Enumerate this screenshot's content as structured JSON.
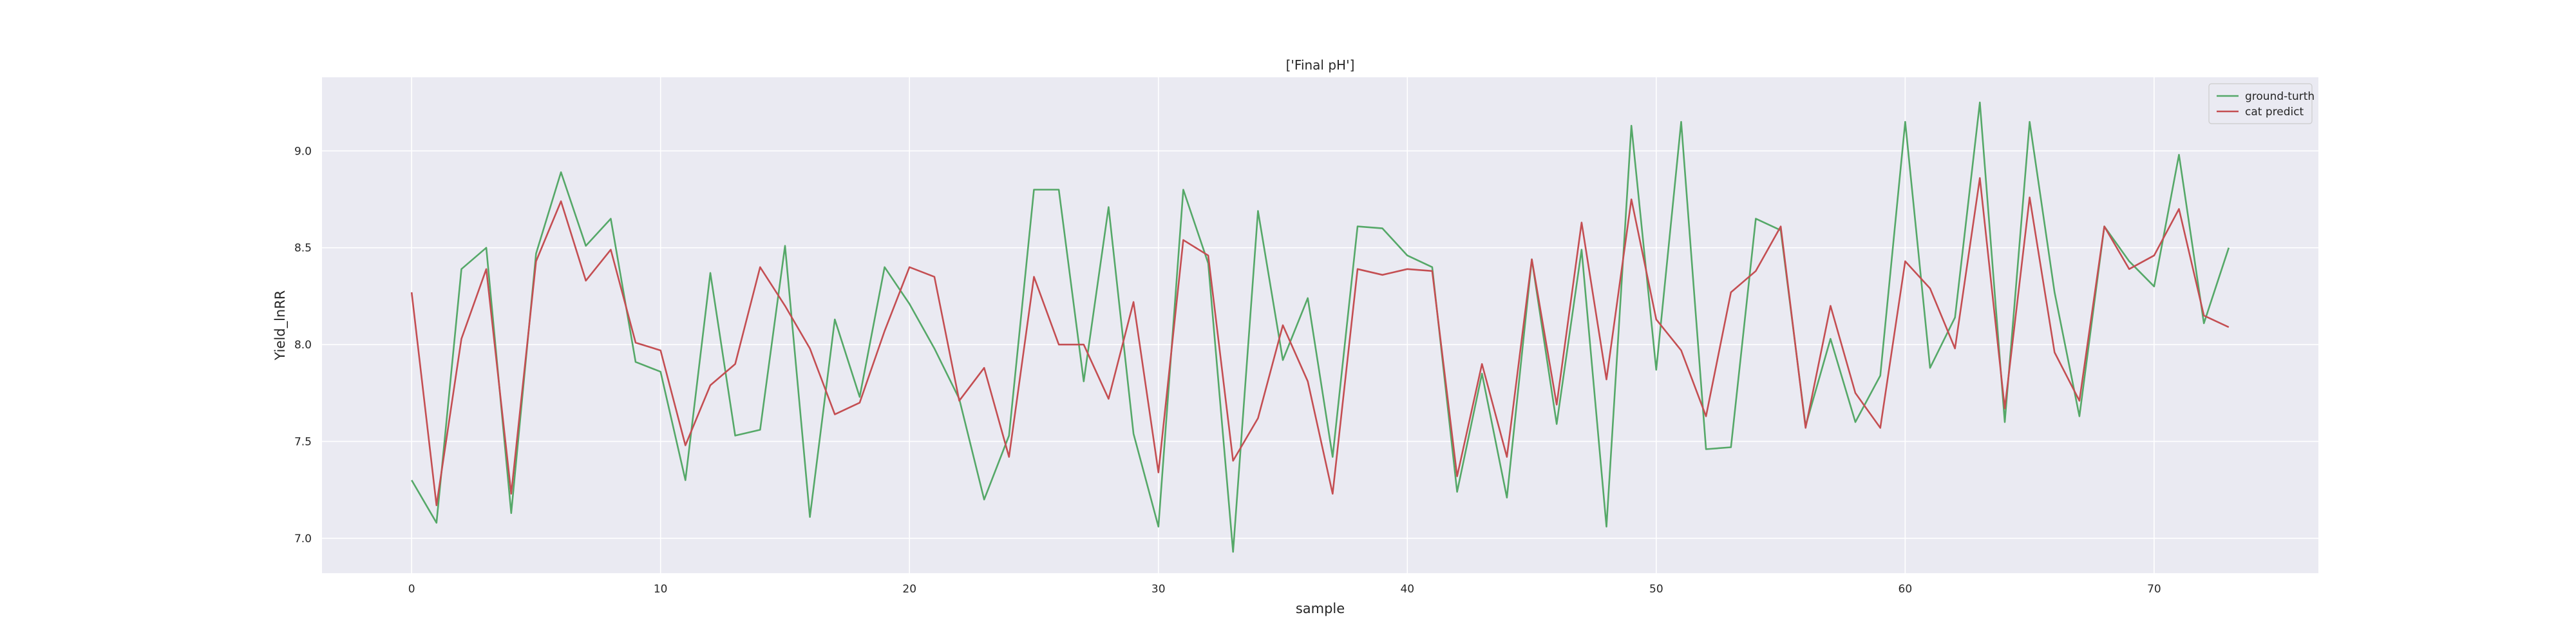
{
  "chart_data": {
    "type": "line",
    "title": "['Final pH']",
    "xlabel": "sample",
    "ylabel": "Yield_lnRR",
    "xlim": [
      -3.6,
      76.6
    ],
    "ylim": [
      6.82,
      9.38
    ],
    "xticks": [
      0,
      10,
      20,
      30,
      40,
      50,
      60,
      70
    ],
    "xtick_labels": [
      "0",
      "10",
      "20",
      "30",
      "40",
      "50",
      "60",
      "70"
    ],
    "yticks": [
      7.0,
      7.5,
      8.0,
      8.5,
      9.0
    ],
    "ytick_labels": [
      "7.0",
      "7.5",
      "8.0",
      "8.5",
      "9.0"
    ],
    "grid": true,
    "legend_position": "top-right",
    "background": "#eaeaf2",
    "series": [
      {
        "name": "ground-turth",
        "color": "#55a868",
        "x": [
          0,
          1,
          2,
          3,
          4,
          5,
          6,
          7,
          8,
          9,
          10,
          11,
          12,
          13,
          14,
          15,
          16,
          17,
          18,
          19,
          20,
          21,
          22,
          23,
          24,
          25,
          26,
          27,
          28,
          29,
          30,
          31,
          32,
          33,
          34,
          35,
          36,
          37,
          38,
          39,
          40,
          41,
          42,
          43,
          44,
          45,
          46,
          47,
          48,
          49,
          50,
          51,
          52,
          53,
          54,
          55,
          56,
          57,
          58,
          59,
          60,
          61,
          62,
          63,
          64,
          65,
          66,
          67,
          68,
          69,
          70,
          71,
          72,
          73
        ],
        "values": [
          7.3,
          7.08,
          8.39,
          8.5,
          7.13,
          8.47,
          8.89,
          8.51,
          8.65,
          7.91,
          7.86,
          7.3,
          8.37,
          7.53,
          7.56,
          8.51,
          7.11,
          8.13,
          7.73,
          8.4,
          8.21,
          7.98,
          7.72,
          7.2,
          7.53,
          8.8,
          8.8,
          7.81,
          8.71,
          7.54,
          7.06,
          8.8,
          8.42,
          6.93,
          8.69,
          7.92,
          8.24,
          7.42,
          8.61,
          8.6,
          8.46,
          8.4,
          7.24,
          7.85,
          7.21,
          8.44,
          7.59,
          8.49,
          7.06,
          9.13,
          7.87,
          9.15,
          7.46,
          7.47,
          8.65,
          8.59,
          7.58,
          8.03,
          7.6,
          7.84,
          9.15,
          7.88,
          8.14,
          9.25,
          7.6,
          9.15,
          8.27,
          7.63,
          8.61,
          8.43,
          8.3,
          8.98,
          8.11,
          8.5
        ]
      },
      {
        "name": "cat predict",
        "color": "#c44e52",
        "x": [
          0,
          1,
          2,
          3,
          4,
          5,
          6,
          7,
          8,
          9,
          10,
          11,
          12,
          13,
          14,
          15,
          16,
          17,
          18,
          19,
          20,
          21,
          22,
          23,
          24,
          25,
          26,
          27,
          28,
          29,
          30,
          31,
          32,
          33,
          34,
          35,
          36,
          37,
          38,
          39,
          40,
          41,
          42,
          43,
          44,
          45,
          46,
          47,
          48,
          49,
          50,
          51,
          52,
          53,
          54,
          55,
          56,
          57,
          58,
          59,
          60,
          61,
          62,
          63,
          64,
          65,
          66,
          67,
          68,
          69,
          70,
          71,
          72,
          73
        ],
        "values": [
          8.27,
          7.17,
          8.03,
          8.39,
          7.23,
          8.43,
          8.74,
          8.33,
          8.49,
          8.01,
          7.97,
          7.48,
          7.79,
          7.9,
          8.4,
          8.2,
          7.98,
          7.64,
          7.7,
          8.07,
          8.4,
          8.35,
          7.71,
          7.88,
          7.42,
          8.35,
          8.0,
          8.0,
          7.72,
          8.22,
          7.34,
          8.54,
          8.46,
          7.4,
          7.62,
          8.1,
          7.81,
          7.23,
          8.39,
          8.36,
          8.39,
          8.38,
          7.32,
          7.9,
          7.42,
          8.44,
          7.69,
          8.63,
          7.82,
          8.75,
          8.13,
          7.97,
          7.63,
          8.27,
          8.38,
          8.61,
          7.57,
          8.2,
          7.75,
          7.57,
          8.43,
          8.29,
          7.98,
          8.86,
          7.67,
          8.76,
          7.96,
          7.71,
          8.61,
          8.39,
          8.46,
          8.7,
          8.15,
          8.09
        ]
      }
    ]
  }
}
